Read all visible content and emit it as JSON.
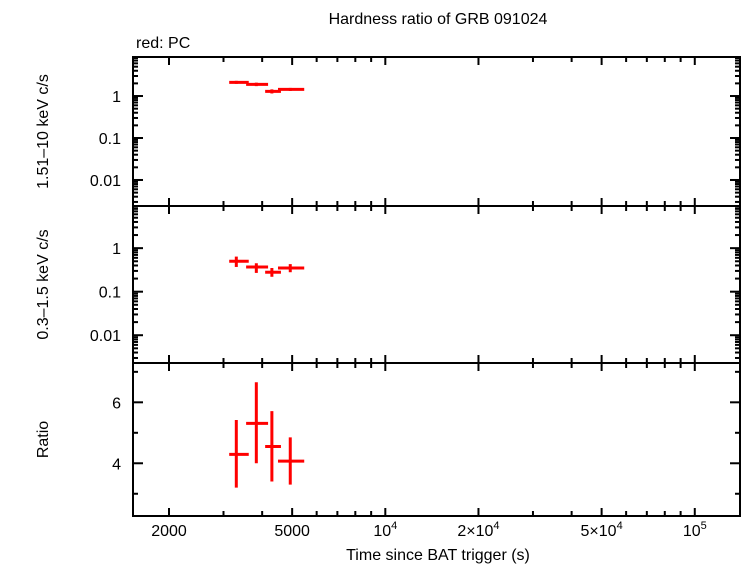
{
  "chart_data": {
    "type": "scatter",
    "title": "Hardness ratio of GRB 091024",
    "legend": "red: PC",
    "xlabel": "Time since BAT trigger (s)",
    "xscale": "log",
    "xlim": [
      1530,
      140000
    ],
    "xticks": [
      {
        "value": 2000,
        "label": "2000"
      },
      {
        "value": 5000,
        "label": "5000"
      },
      {
        "value": 10000,
        "label": "10",
        "sup": "4"
      },
      {
        "value": 20000,
        "label": "2×10",
        "sup": "4"
      },
      {
        "value": 50000,
        "label": "5×10",
        "sup": "4"
      },
      {
        "value": 100000,
        "label": "10",
        "sup": "5"
      }
    ],
    "series_color": "#ff0000",
    "panels": [
      {
        "ylabel": "1.51–10 keV c/s",
        "yscale": "log",
        "ylim": [
          0.0024,
          8.5
        ],
        "yticks": [
          {
            "value": 1,
            "label": "1"
          },
          {
            "value": 0.1,
            "label": "0.1"
          },
          {
            "value": 0.01,
            "label": "0.01"
          }
        ],
        "points": [
          {
            "x": 3300,
            "xlo": 3130,
            "xhi": 3620,
            "y": 2.12,
            "ylo": 1.95,
            "yhi": 2.3
          },
          {
            "x": 3830,
            "xlo": 3550,
            "xhi": 4180,
            "y": 1.9,
            "ylo": 1.72,
            "yhi": 2.08
          },
          {
            "x": 4300,
            "xlo": 4090,
            "xhi": 4600,
            "y": 1.29,
            "ylo": 1.15,
            "yhi": 1.44
          },
          {
            "x": 4930,
            "xlo": 4500,
            "xhi": 5470,
            "y": 1.44,
            "ylo": 1.32,
            "yhi": 1.56
          }
        ]
      },
      {
        "ylabel": "0.3–1.5 keV c/s",
        "yscale": "log",
        "ylim": [
          0.0023,
          9.3
        ],
        "yticks": [
          {
            "value": 1,
            "label": "1"
          },
          {
            "value": 0.1,
            "label": "0.1"
          },
          {
            "value": 0.01,
            "label": "0.01"
          }
        ],
        "points": [
          {
            "x": 3300,
            "xlo": 3130,
            "xhi": 3620,
            "y": 0.5,
            "ylo": 0.37,
            "yhi": 0.64
          },
          {
            "x": 3830,
            "xlo": 3550,
            "xhi": 4180,
            "y": 0.37,
            "ylo": 0.27,
            "yhi": 0.45
          },
          {
            "x": 4300,
            "xlo": 4090,
            "xhi": 4600,
            "y": 0.28,
            "ylo": 0.22,
            "yhi": 0.35
          },
          {
            "x": 4930,
            "xlo": 4500,
            "xhi": 5470,
            "y": 0.35,
            "ylo": 0.28,
            "yhi": 0.43
          }
        ]
      },
      {
        "ylabel": "Ratio",
        "yscale": "linear",
        "ylim": [
          2.27,
          7.29
        ],
        "yticks": [
          {
            "value": 6,
            "label": "6"
          },
          {
            "value": 4,
            "label": "4"
          }
        ],
        "yminor": [
          3,
          5,
          7
        ],
        "points": [
          {
            "x": 3300,
            "xlo": 3130,
            "xhi": 3620,
            "y": 4.29,
            "ylo": 3.2,
            "yhi": 5.42
          },
          {
            "x": 3830,
            "xlo": 3550,
            "xhi": 4180,
            "y": 5.31,
            "ylo": 4.0,
            "yhi": 6.66
          },
          {
            "x": 4300,
            "xlo": 4090,
            "xhi": 4600,
            "y": 4.55,
            "ylo": 3.4,
            "yhi": 5.71
          },
          {
            "x": 4930,
            "xlo": 4500,
            "xhi": 5470,
            "y": 4.07,
            "ylo": 3.3,
            "yhi": 4.85
          }
        ]
      }
    ]
  }
}
